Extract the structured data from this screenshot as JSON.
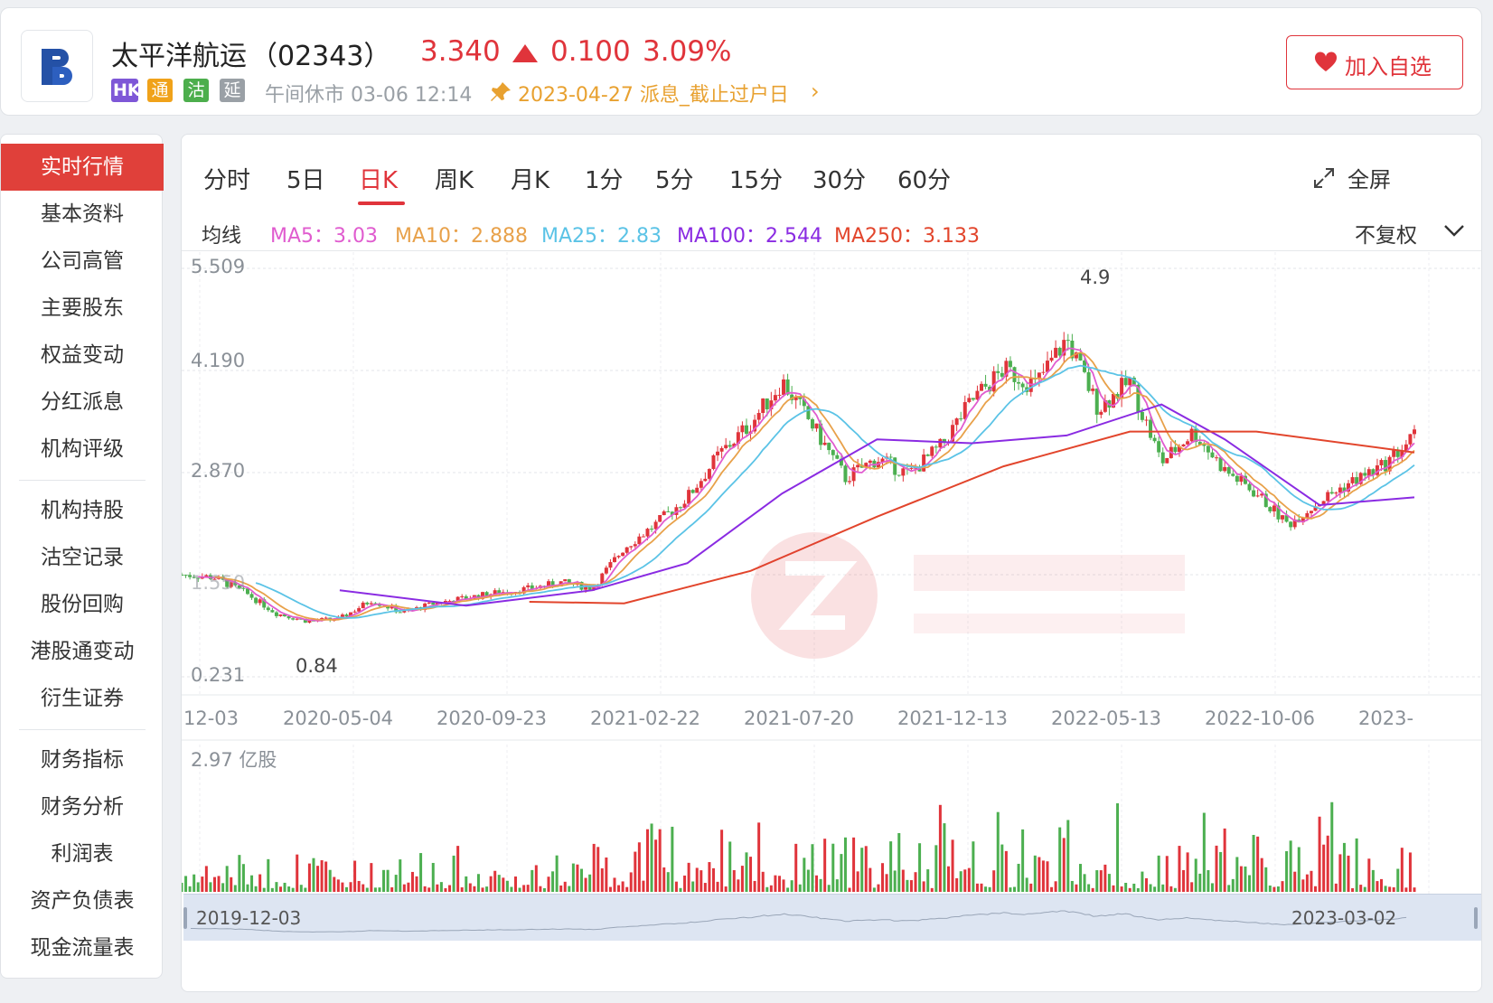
{
  "header": {
    "name": "太平洋航运",
    "code": "（02343）",
    "price": "3.340",
    "change": "0.100",
    "change_pct": "3.09%",
    "tags": [
      "HK",
      "通",
      "沽",
      "延"
    ],
    "status": "午间休市 03-06 12:14",
    "notice": "2023-04-27 派息_截止过户日",
    "watch_button": "加入自选",
    "colors": {
      "up": "#e0343b",
      "down": "#4caf50",
      "notice": "#e8a130"
    }
  },
  "sidebar": {
    "items": [
      "实时行情",
      "基本资料",
      "公司高管",
      "主要股东",
      "权益变动",
      "分红派息",
      "机构评级",
      "机构持股",
      "沽空记录",
      "股份回购",
      "港股通变动",
      "衍生证券",
      "财务指标",
      "财务分析",
      "利润表",
      "资产负债表",
      "现金流量表"
    ],
    "active": "实时行情"
  },
  "chart_panel": {
    "tabs": [
      "分时",
      "5日",
      "日K",
      "周K",
      "月K",
      "1分",
      "5分",
      "15分",
      "30分",
      "60分"
    ],
    "active_tab": "日K",
    "fullscreen_label": "全屏",
    "ma_title": "均线",
    "ma": [
      {
        "label": "MA5：3.03",
        "color": "#e05ccf"
      },
      {
        "label": "MA10：2.888",
        "color": "#e8a14a"
      },
      {
        "label": "MA25：2.83",
        "color": "#5bc3e6"
      },
      {
        "label": "MA100：2.544",
        "color": "#8a2be2"
      },
      {
        "label": "MA250：3.133",
        "color": "#e2452c"
      }
    ],
    "adjust": "不复权",
    "volume_label": "2.97 亿股",
    "navigator": {
      "start": "2019-12-03",
      "end": "2023-03-02"
    }
  },
  "chart_data": {
    "type": "candlestick",
    "y_ticks": [
      "5.509",
      "4.190",
      "2.870",
      "1.550",
      "0.231"
    ],
    "ylim": [
      0.231,
      5.509
    ],
    "x_ticks": [
      "12-03",
      "2020-05-04",
      "2020-09-23",
      "2021-02-22",
      "2021-07-20",
      "2021-12-13",
      "2022-05-13",
      "2022-10-06",
      "2023-"
    ],
    "annotations": {
      "high": "4.9",
      "low": "0.84"
    },
    "close_path": [
      [
        "2019-12",
        1.55
      ],
      [
        "2020-01",
        1.52
      ],
      [
        "2020-02",
        1.32
      ],
      [
        "2020-03",
        1.05
      ],
      [
        "2020-04",
        0.95
      ],
      [
        "2020-05",
        0.98
      ],
      [
        "2020-06",
        1.22
      ],
      [
        "2020-07",
        1.06
      ],
      [
        "2020-08",
        1.18
      ],
      [
        "2020-09",
        1.25
      ],
      [
        "2020-10",
        1.32
      ],
      [
        "2020-11",
        1.37
      ],
      [
        "2020-12",
        1.45
      ],
      [
        "2021-01",
        1.38
      ],
      [
        "2021-02",
        1.9
      ],
      [
        "2021-03",
        2.2
      ],
      [
        "2021-04",
        2.55
      ],
      [
        "2021-05",
        3.1
      ],
      [
        "2021-06",
        3.5
      ],
      [
        "2021-07",
        4.05
      ],
      [
        "2021-08",
        3.45
      ],
      [
        "2021-09",
        2.8
      ],
      [
        "2021-10",
        3.05
      ],
      [
        "2021-11",
        2.85
      ],
      [
        "2021-12",
        3.2
      ],
      [
        "2022-01",
        3.8
      ],
      [
        "2022-02",
        4.2
      ],
      [
        "2022-03",
        4.0
      ],
      [
        "2022-04",
        4.6
      ],
      [
        "2022-05",
        3.7
      ],
      [
        "2022-06",
        4.05
      ],
      [
        "2022-07",
        3.0
      ],
      [
        "2022-08",
        3.4
      ],
      [
        "2022-09",
        2.9
      ],
      [
        "2022-10",
        2.6
      ],
      [
        "2022-11",
        2.2
      ],
      [
        "2022-12",
        2.5
      ],
      [
        "2023-01",
        2.75
      ],
      [
        "2023-02",
        2.95
      ],
      [
        "2023-03",
        3.34
      ]
    ],
    "ma100": [
      [
        "2020-05",
        1.35
      ],
      [
        "2020-09",
        1.15
      ],
      [
        "2021-01",
        1.35
      ],
      [
        "2021-04",
        1.7
      ],
      [
        "2021-07",
        2.6
      ],
      [
        "2021-10",
        3.3
      ],
      [
        "2022-01",
        3.25
      ],
      [
        "2022-04",
        3.35
      ],
      [
        "2022-07",
        3.75
      ],
      [
        "2022-09",
        3.3
      ],
      [
        "2022-12",
        2.45
      ],
      [
        "2023-03",
        2.55
      ]
    ],
    "ma250": [
      [
        "2020-11",
        1.2
      ],
      [
        "2021-02",
        1.18
      ],
      [
        "2021-06",
        1.6
      ],
      [
        "2021-10",
        2.3
      ],
      [
        "2022-02",
        2.95
      ],
      [
        "2022-06",
        3.4
      ],
      [
        "2022-10",
        3.4
      ],
      [
        "2023-03",
        3.13
      ]
    ]
  }
}
